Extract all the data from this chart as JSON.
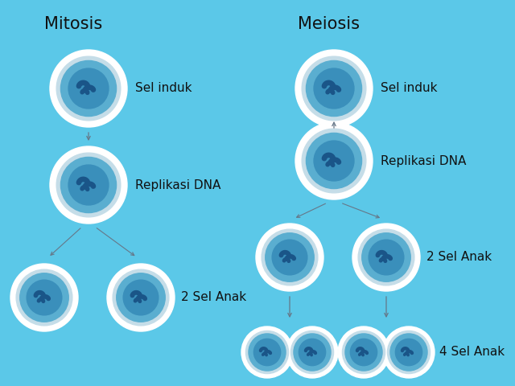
{
  "background_color": "#5BC8E8",
  "title_mitosis": "Mitosis",
  "title_meiosis": "Meiosis",
  "label_sel_induk": "Sel induk",
  "label_replikasi_dna": "Replikasi DNA",
  "label_2_sel_anak": "2 Sel Anak",
  "label_4_sel_anak": "4 Sel Anak",
  "text_color": "#111111",
  "title_fontsize": 15,
  "label_fontsize": 11,
  "cell_outer_color": "#FFFFFF",
  "cell_mid_color": "#C8E8F0",
  "cell_inner_color": "#5AAED0",
  "cell_nucleus_color": "#3A90BB",
  "chrom_color": "#1A5588",
  "arrow_color": "#667788"
}
